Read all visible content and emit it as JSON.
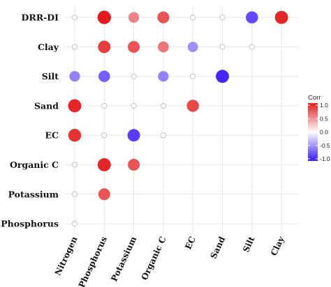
{
  "chart_data": {
    "type": "scatter",
    "subtype": "correlation-dot-matrix",
    "title": "",
    "x_categories": [
      "Nitrogen",
      "Phosphorus",
      "Potassium",
      "Organic C",
      "EC",
      "Sand",
      "Silt",
      "Clay"
    ],
    "y_categories": [
      "DRR-DI",
      "Clay",
      "Silt",
      "Sand",
      "EC",
      "Organic C",
      "Potassium",
      "Phosphorus"
    ],
    "points": [
      {
        "row": "DRR-DI",
        "col": "Nitrogen",
        "corr": 0.0
      },
      {
        "row": "DRR-DI",
        "col": "Phosphorus",
        "corr": 1.0
      },
      {
        "row": "DRR-DI",
        "col": "Potassium",
        "corr": 0.55
      },
      {
        "row": "DRR-DI",
        "col": "Organic C",
        "corr": 0.75
      },
      {
        "row": "DRR-DI",
        "col": "EC",
        "corr": 0.0
      },
      {
        "row": "DRR-DI",
        "col": "Sand",
        "corr": 0.0
      },
      {
        "row": "DRR-DI",
        "col": "Silt",
        "corr": -0.8
      },
      {
        "row": "DRR-DI",
        "col": "Clay",
        "corr": 0.95
      },
      {
        "row": "Clay",
        "col": "Nitrogen",
        "corr": 0.0
      },
      {
        "row": "Clay",
        "col": "Phosphorus",
        "corr": 0.85
      },
      {
        "row": "Clay",
        "col": "Potassium",
        "corr": 0.75
      },
      {
        "row": "Clay",
        "col": "Organic C",
        "corr": 0.6
      },
      {
        "row": "Clay",
        "col": "EC",
        "corr": -0.5
      },
      {
        "row": "Clay",
        "col": "Sand",
        "corr": 0.0
      },
      {
        "row": "Clay",
        "col": "Silt",
        "corr": 0.0
      },
      {
        "row": "Silt",
        "col": "Nitrogen",
        "corr": -0.55
      },
      {
        "row": "Silt",
        "col": "Phosphorus",
        "corr": -0.7
      },
      {
        "row": "Silt",
        "col": "Potassium",
        "corr": 0.0
      },
      {
        "row": "Silt",
        "col": "Organic C",
        "corr": -0.55
      },
      {
        "row": "Silt",
        "col": "EC",
        "corr": 0.0
      },
      {
        "row": "Silt",
        "col": "Sand",
        "corr": -0.95
      },
      {
        "row": "Sand",
        "col": "Nitrogen",
        "corr": 0.95
      },
      {
        "row": "Sand",
        "col": "Phosphorus",
        "corr": 0.0
      },
      {
        "row": "Sand",
        "col": "Potassium",
        "corr": 0.0
      },
      {
        "row": "Sand",
        "col": "Organic C",
        "corr": 0.0
      },
      {
        "row": "Sand",
        "col": "EC",
        "corr": 0.8
      },
      {
        "row": "EC",
        "col": "Nitrogen",
        "corr": 0.9
      },
      {
        "row": "EC",
        "col": "Phosphorus",
        "corr": 0.0
      },
      {
        "row": "EC",
        "col": "Potassium",
        "corr": -0.85
      },
      {
        "row": "EC",
        "col": "Organic C",
        "corr": 0.0
      },
      {
        "row": "Organic C",
        "col": "Nitrogen",
        "corr": 0.0
      },
      {
        "row": "Organic C",
        "col": "Phosphorus",
        "corr": 0.95
      },
      {
        "row": "Organic C",
        "col": "Potassium",
        "corr": 0.75
      },
      {
        "row": "Potassium",
        "col": "Nitrogen",
        "corr": 0.0
      },
      {
        "row": "Potassium",
        "col": "Phosphorus",
        "corr": 0.75
      },
      {
        "row": "Phosphorus",
        "col": "Nitrogen",
        "corr": 0.0
      }
    ],
    "legend": {
      "title": "Corr",
      "ticks": [
        "1.0",
        "0.5",
        "0.0",
        "-0.5",
        "-1.0"
      ],
      "range": [
        -1,
        1
      ],
      "placement": "right",
      "colors": {
        "high": "#e41a1c",
        "mid": "#ffffff",
        "low": "#3a1bff"
      }
    },
    "grid": true
  }
}
